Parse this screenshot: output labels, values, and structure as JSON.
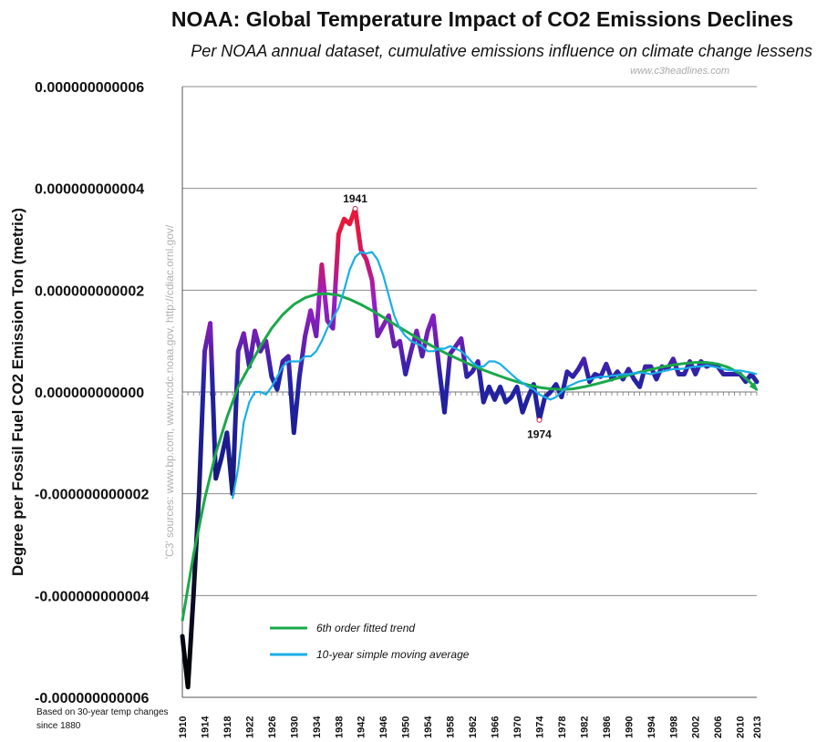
{
  "chart_data": {
    "type": "line",
    "title": "NOAA: Global Temperature Impact of CO2 Emissions Declines",
    "subtitle": "Per NOAA annual dataset, cumulative emissions influence on climate change lessens",
    "website": "www.c3headlines.com",
    "ylabel": "Degree per Fossil Fuel CO2 Emission Ton (metric)",
    "sources_note": "'C3' sources: www.bp.com, www.ncdc.noaa.gov, http://cdiac.ornl.gov/",
    "footnote": "Based on 30-year temp changes since 1880",
    "ylim": [
      -6e-12,
      6e-12
    ],
    "xlim": [
      1910,
      2013
    ],
    "grid": true,
    "y_ticks": [
      {
        "value": 6e-12,
        "label": "0.000000000006"
      },
      {
        "value": 4e-12,
        "label": "0.000000000004"
      },
      {
        "value": 2e-12,
        "label": "0.000000000002"
      },
      {
        "value": 0,
        "label": "0.000000000000"
      },
      {
        "value": -2e-12,
        "label": "-0.000000000002"
      },
      {
        "value": -4e-12,
        "label": "-0.000000000004"
      },
      {
        "value": -6e-12,
        "label": "-0.000000000006"
      }
    ],
    "x_ticks": [
      "1910",
      "1914",
      "1918",
      "1922",
      "1926",
      "1930",
      "1934",
      "1938",
      "1942",
      "1946",
      "1950",
      "1954",
      "1958",
      "1962",
      "1966",
      "1970",
      "1974",
      "1978",
      "1982",
      "1986",
      "1990",
      "1994",
      "1998",
      "2002",
      "2006",
      "2010",
      "2013"
    ],
    "annotations": [
      {
        "label": "1941",
        "x": 1941,
        "y": 3.6e-12
      },
      {
        "label": "1974",
        "x": 1974,
        "y": -5.5e-13
      }
    ],
    "legend_position": "bottom-left",
    "series": [
      {
        "name": "6th order fitted trend",
        "color": "#1aa84a",
        "x": [
          1910,
          1912,
          1914,
          1916,
          1918,
          1920,
          1922,
          1924,
          1926,
          1928,
          1930,
          1932,
          1934,
          1936,
          1938,
          1940,
          1942,
          1944,
          1946,
          1948,
          1950,
          1952,
          1954,
          1956,
          1958,
          1960,
          1962,
          1964,
          1966,
          1968,
          1970,
          1972,
          1974,
          1976,
          1978,
          1980,
          1982,
          1984,
          1986,
          1988,
          1990,
          1992,
          1994,
          1996,
          1998,
          2000,
          2002,
          2004,
          2006,
          2008,
          2010,
          2012,
          2013
        ],
        "values": [
          -4.5e-12,
          -3.2e-12,
          -2.1e-12,
          -1.2e-12,
          -5e-13,
          1e-13,
          5e-13,
          9e-13,
          1.25e-12,
          1.52e-12,
          1.72e-12,
          1.85e-12,
          1.92e-12,
          1.93e-12,
          1.9e-12,
          1.82e-12,
          1.72e-12,
          1.6e-12,
          1.47e-12,
          1.33e-12,
          1.2e-12,
          1.07e-12,
          9.5e-13,
          8.3e-13,
          7.2e-13,
          6.2e-13,
          5.2e-13,
          4.3e-13,
          3.5e-13,
          2.7e-13,
          2e-13,
          1.4e-13,
          9e-14,
          6e-14,
          5e-14,
          6e-14,
          1e-13,
          1.5e-13,
          2.1e-13,
          2.7e-13,
          3.3e-13,
          3.9e-13,
          4.4e-13,
          4.9e-13,
          5.3e-13,
          5.6e-13,
          5.8e-13,
          5.8e-13,
          5.5e-13,
          4.8e-13,
          3.6e-13,
          1.7e-13,
          4e-14
        ]
      },
      {
        "name": "10-year simple moving average",
        "color": "#18aee6",
        "x": [
          1919,
          1920,
          1921,
          1922,
          1923,
          1924,
          1925,
          1926,
          1927,
          1928,
          1929,
          1930,
          1931,
          1932,
          1933,
          1934,
          1935,
          1936,
          1937,
          1938,
          1939,
          1940,
          1941,
          1942,
          1943,
          1944,
          1945,
          1946,
          1947,
          1948,
          1949,
          1950,
          1951,
          1952,
          1953,
          1954,
          1955,
          1956,
          1957,
          1958,
          1959,
          1960,
          1961,
          1962,
          1963,
          1964,
          1965,
          1966,
          1967,
          1968,
          1969,
          1970,
          1971,
          1972,
          1973,
          1974,
          1975,
          1976,
          1977,
          1978,
          1979,
          1980,
          1981,
          1982,
          1983,
          1984,
          1985,
          1986,
          1987,
          1988,
          1989,
          1990,
          1991,
          1992,
          1993,
          1994,
          1995,
          1996,
          1997,
          1998,
          1999,
          2000,
          2001,
          2002,
          2003,
          2004,
          2005,
          2006,
          2007,
          2008,
          2009,
          2010,
          2011,
          2012,
          2013
        ],
        "values": [
          -2.1e-12,
          -1.5e-12,
          -6e-13,
          -2e-13,
          0,
          0,
          -5e-14,
          1e-13,
          3e-13,
          5e-13,
          6e-13,
          6e-13,
          6e-13,
          7e-13,
          7e-13,
          8e-13,
          1e-12,
          1.25e-12,
          1.45e-12,
          1.65e-12,
          2e-12,
          2.4e-12,
          2.65e-12,
          2.75e-12,
          2.72e-12,
          2.75e-12,
          2.6e-12,
          2.3e-12,
          1.9e-12,
          1.5e-12,
          1.25e-12,
          1.1e-12,
          1e-12,
          9.5e-13,
          9e-13,
          8e-13,
          8e-13,
          8.5e-13,
          8.5e-13,
          9e-13,
          8.5e-13,
          8e-13,
          7e-13,
          5.8e-13,
          5e-13,
          5e-13,
          6e-13,
          6e-13,
          5.5e-13,
          4.5e-13,
          3.5e-13,
          2.5e-13,
          1.8e-13,
          1e-13,
          5e-14,
          -5e-14,
          -1e-13,
          -1.5e-13,
          -1e-13,
          0,
          1e-13,
          1.5e-13,
          2e-13,
          2.3e-13,
          2.5e-13,
          2.8e-13,
          3e-13,
          3e-13,
          3.2e-13,
          3.3e-13,
          3.5e-13,
          3.5e-13,
          3.7e-13,
          3.8e-13,
          3.7e-13,
          3.5e-13,
          3.8e-13,
          4e-13,
          4.3e-13,
          4.5e-13,
          4.5e-13,
          4.6e-13,
          4.8e-13,
          5e-13,
          5e-13,
          5.2e-13,
          5e-13,
          4.8e-13,
          4.5e-13,
          4.3e-13,
          4.2e-13,
          4.2e-13,
          4e-13,
          3.8e-13,
          3.5e-13
        ]
      },
      {
        "name": "",
        "color": "#20209a",
        "x": [
          1910,
          1911,
          1912,
          1913,
          1914,
          1915,
          1916,
          1917,
          1918,
          1919,
          1920,
          1921,
          1922,
          1923,
          1924,
          1925,
          1926,
          1927,
          1928,
          1929,
          1930,
          1931,
          1932,
          1933,
          1934,
          1935,
          1936,
          1937,
          1938,
          1939,
          1940,
          1941,
          1942,
          1943,
          1944,
          1945,
          1946,
          1947,
          1948,
          1949,
          1950,
          1951,
          1952,
          1953,
          1954,
          1955,
          1956,
          1957,
          1958,
          1959,
          1960,
          1961,
          1962,
          1963,
          1964,
          1965,
          1966,
          1967,
          1968,
          1969,
          1970,
          1971,
          1972,
          1973,
          1974,
          1975,
          1976,
          1977,
          1978,
          1979,
          1980,
          1981,
          1982,
          1983,
          1984,
          1985,
          1986,
          1987,
          1988,
          1989,
          1990,
          1991,
          1992,
          1993,
          1994,
          1995,
          1996,
          1997,
          1998,
          1999,
          2000,
          2001,
          2002,
          2003,
          2004,
          2005,
          2006,
          2007,
          2008,
          2009,
          2010,
          2011,
          2012,
          2013
        ],
        "values": [
          -4.8e-12,
          -5.8e-12,
          -4e-12,
          -2e-12,
          8e-13,
          1.35e-12,
          -1.7e-12,
          -1.3e-12,
          -8e-13,
          -2e-12,
          8e-13,
          1.15e-12,
          5e-13,
          1.2e-12,
          8e-13,
          1e-12,
          3e-13,
          5e-14,
          6e-13,
          7e-13,
          -8e-13,
          3e-13,
          1.1e-12,
          1.6e-12,
          1.1e-12,
          2.5e-12,
          1.4e-12,
          1.25e-12,
          3.1e-12,
          3.4e-12,
          3.3e-12,
          3.6e-12,
          2.8e-12,
          2.6e-12,
          2.2e-12,
          1.1e-12,
          1.3e-12,
          1.5e-12,
          9e-13,
          1e-12,
          3.5e-13,
          8e-13,
          1.2e-12,
          7e-13,
          1.2e-12,
          1.5e-12,
          5e-13,
          -4e-13,
          7.5e-13,
          9e-13,
          1.05e-12,
          3e-13,
          4e-13,
          6e-13,
          -2e-13,
          1e-13,
          -1.5e-13,
          1e-13,
          -2e-13,
          -1e-13,
          1e-13,
          -4e-13,
          -1e-13,
          1.5e-13,
          -5.5e-13,
          -1e-13,
          0,
          1.5e-13,
          -1e-13,
          4e-13,
          3e-13,
          4.5e-13,
          6.5e-13,
          2e-13,
          3.5e-13,
          3e-13,
          5.5e-13,
          2.5e-13,
          4e-13,
          2.5e-13,
          4.5e-13,
          2.5e-13,
          1e-13,
          5e-13,
          5e-13,
          2.5e-13,
          5e-13,
          4.5e-13,
          6.5e-13,
          3.5e-13,
          3.5e-13,
          6e-13,
          3.5e-13,
          6e-13,
          5e-13,
          5.5e-13,
          5e-13,
          3.5e-13,
          3.5e-13,
          3.5e-13,
          3.5e-13,
          2e-13,
          3.5e-13,
          2e-13
        ]
      }
    ]
  }
}
